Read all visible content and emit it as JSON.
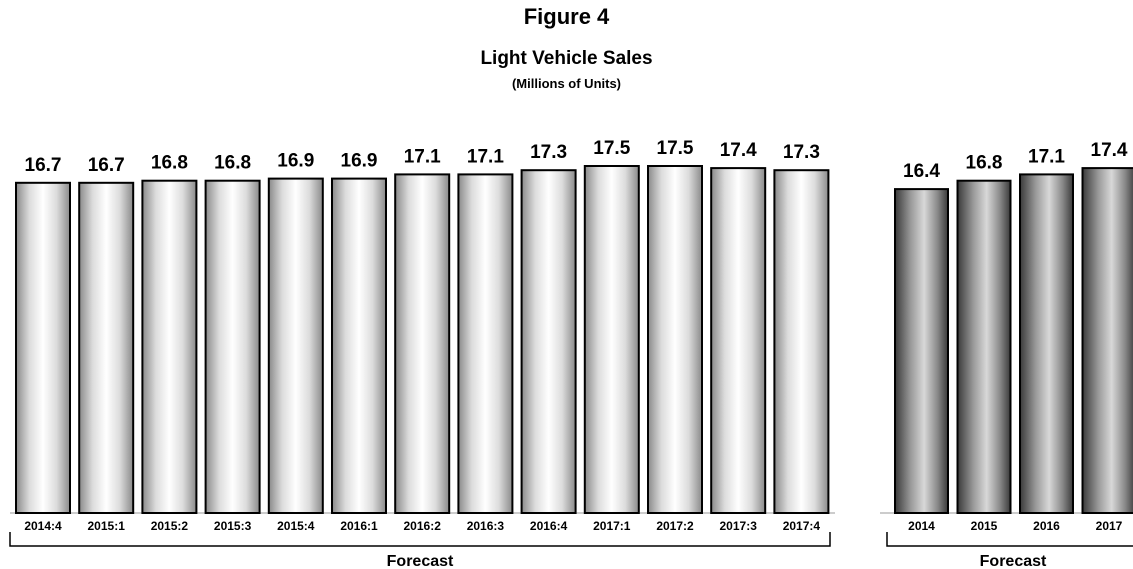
{
  "figure_label": "Figure 4",
  "title": "Light Vehicle Sales",
  "subtitle": "(Millions of Units)",
  "chart_data": [
    {
      "type": "bar",
      "title": "Light Vehicle Sales",
      "subtitle": "(Millions of Units)",
      "categories": [
        "2014:4",
        "2015:1",
        "2015:2",
        "2015:3",
        "2015:4",
        "2016:1",
        "2016:2",
        "2016:3",
        "2016:4",
        "2017:1",
        "2017:2",
        "2017:3",
        "2017:4"
      ],
      "values": [
        16.7,
        16.7,
        16.8,
        16.8,
        16.9,
        16.9,
        17.1,
        17.1,
        17.3,
        17.5,
        17.5,
        17.4,
        17.3
      ],
      "bracket_label": "Forecast",
      "ylim": [
        0,
        17.5
      ],
      "grid": false,
      "bar_color": "#e8e8e8"
    },
    {
      "type": "bar",
      "categories": [
        "2014",
        "2015",
        "2016",
        "2017"
      ],
      "values": [
        16.4,
        16.8,
        17.1,
        17.4
      ],
      "bracket_label": "Forecast",
      "ylim": [
        0,
        17.5
      ],
      "grid": false,
      "bar_color": "#9a9a9a"
    }
  ]
}
